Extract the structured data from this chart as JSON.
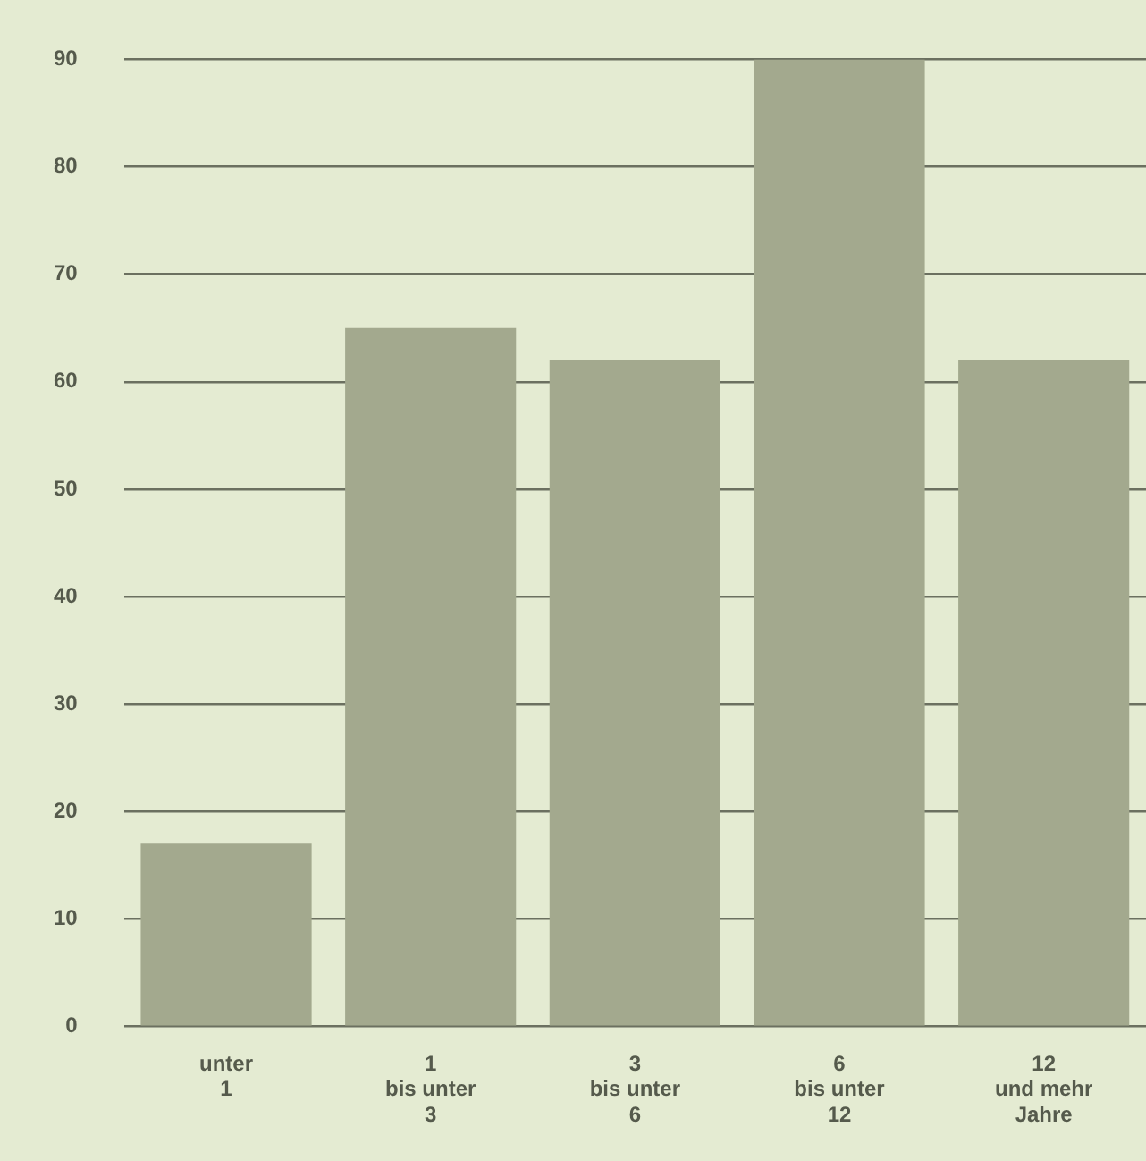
{
  "chart_data": {
    "type": "bar",
    "categories": [
      "unter\n1",
      "1\nbis unter\n3",
      "3\nbis unter\n6",
      "6\nbis unter\n12",
      "12\nund mehr\nJahre"
    ],
    "values": [
      17,
      65,
      62,
      90,
      62
    ],
    "color": "#a3a98e",
    "ylim": [
      0,
      90
    ],
    "yticks": [
      0,
      10,
      20,
      30,
      40,
      50,
      60,
      70,
      80,
      90
    ],
    "grid": "y"
  }
}
